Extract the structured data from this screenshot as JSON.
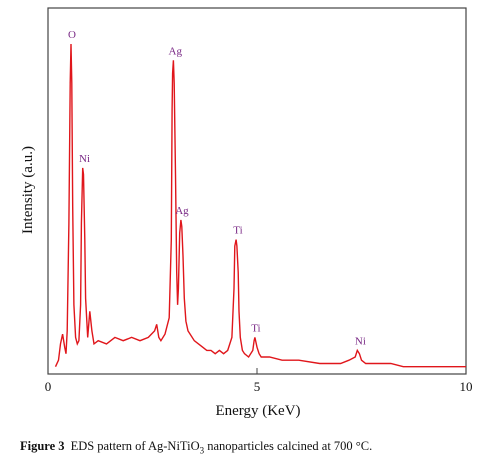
{
  "chart_data": {
    "type": "line",
    "title": "",
    "xlabel": "Energy (KeV)",
    "ylabel": "Intensity (a.u.)",
    "xlim": [
      0,
      10
    ],
    "ylim": [
      0,
      100
    ],
    "xticks": [
      0,
      5,
      10
    ],
    "grid": false,
    "line_color": "#e0161b",
    "label_color": "#7a2a86",
    "series": [
      {
        "x": [
          0.18,
          0.25,
          0.3,
          0.35,
          0.4,
          0.43,
          0.46,
          0.5,
          0.53,
          0.55,
          0.57,
          0.59,
          0.62,
          0.66,
          0.7,
          0.74,
          0.78,
          0.8,
          0.83,
          0.85,
          0.88,
          0.9,
          0.95,
          1.0,
          1.05,
          1.1,
          1.2,
          1.4,
          1.6,
          1.8,
          2.0,
          2.2,
          2.4,
          2.55,
          2.6,
          2.65,
          2.7,
          2.8,
          2.9,
          2.95,
          2.97,
          2.98,
          3.0,
          3.02,
          3.05,
          3.08,
          3.1,
          3.12,
          3.15,
          3.18,
          3.2,
          3.23,
          3.26,
          3.3,
          3.35,
          3.4,
          3.5,
          3.6,
          3.7,
          3.8,
          3.9,
          4.0,
          4.1,
          4.2,
          4.3,
          4.4,
          4.45,
          4.47,
          4.5,
          4.52,
          4.55,
          4.57,
          4.6,
          4.65,
          4.7,
          4.8,
          4.9,
          4.93,
          4.95,
          5.0,
          5.05,
          5.1,
          5.3,
          5.6,
          6.0,
          6.5,
          7.0,
          7.2,
          7.35,
          7.4,
          7.45,
          7.5,
          7.6,
          7.8,
          8.0,
          8.2,
          8.5,
          9.0,
          9.5,
          10.0
        ],
        "y": [
          1,
          3,
          8,
          11,
          7,
          5,
          12,
          45,
          88,
          100,
          88,
          50,
          20,
          10,
          8,
          9,
          20,
          45,
          62,
          60,
          40,
          22,
          10,
          18,
          12,
          8,
          9,
          8,
          10,
          9,
          10,
          9,
          10,
          12,
          14,
          10,
          9,
          11,
          16,
          40,
          80,
          91,
          95,
          88,
          60,
          30,
          20,
          25,
          42,
          46,
          44,
          35,
          22,
          15,
          12,
          11,
          9,
          8,
          7,
          6,
          6,
          5,
          6,
          5,
          6,
          10,
          25,
          38,
          40,
          38,
          30,
          18,
          10,
          6,
          5,
          4,
          6,
          9,
          10,
          7,
          5,
          4,
          4,
          3,
          3,
          2,
          2,
          3,
          4,
          6,
          5,
          3,
          2,
          2,
          2,
          2,
          1,
          1,
          1,
          1
        ]
      }
    ],
    "annotations": [
      {
        "text": "O",
        "x": 0.55,
        "y": 100
      },
      {
        "text": "Ni",
        "x": 0.85,
        "y": 62
      },
      {
        "text": "Ag",
        "x": 3.02,
        "y": 95
      },
      {
        "text": "Ag",
        "x": 3.18,
        "y": 46
      },
      {
        "text": "Ti",
        "x": 4.52,
        "y": 40
      },
      {
        "text": "Ti",
        "x": 4.95,
        "y": 10
      },
      {
        "text": "Ni",
        "x": 7.45,
        "y": 6
      }
    ]
  },
  "caption": {
    "figure": "Figure 3",
    "pre": "EDS pattern of Ag-NiTiO",
    "sub": "3",
    "post": " nanoparticles calcined at 700 °C."
  }
}
